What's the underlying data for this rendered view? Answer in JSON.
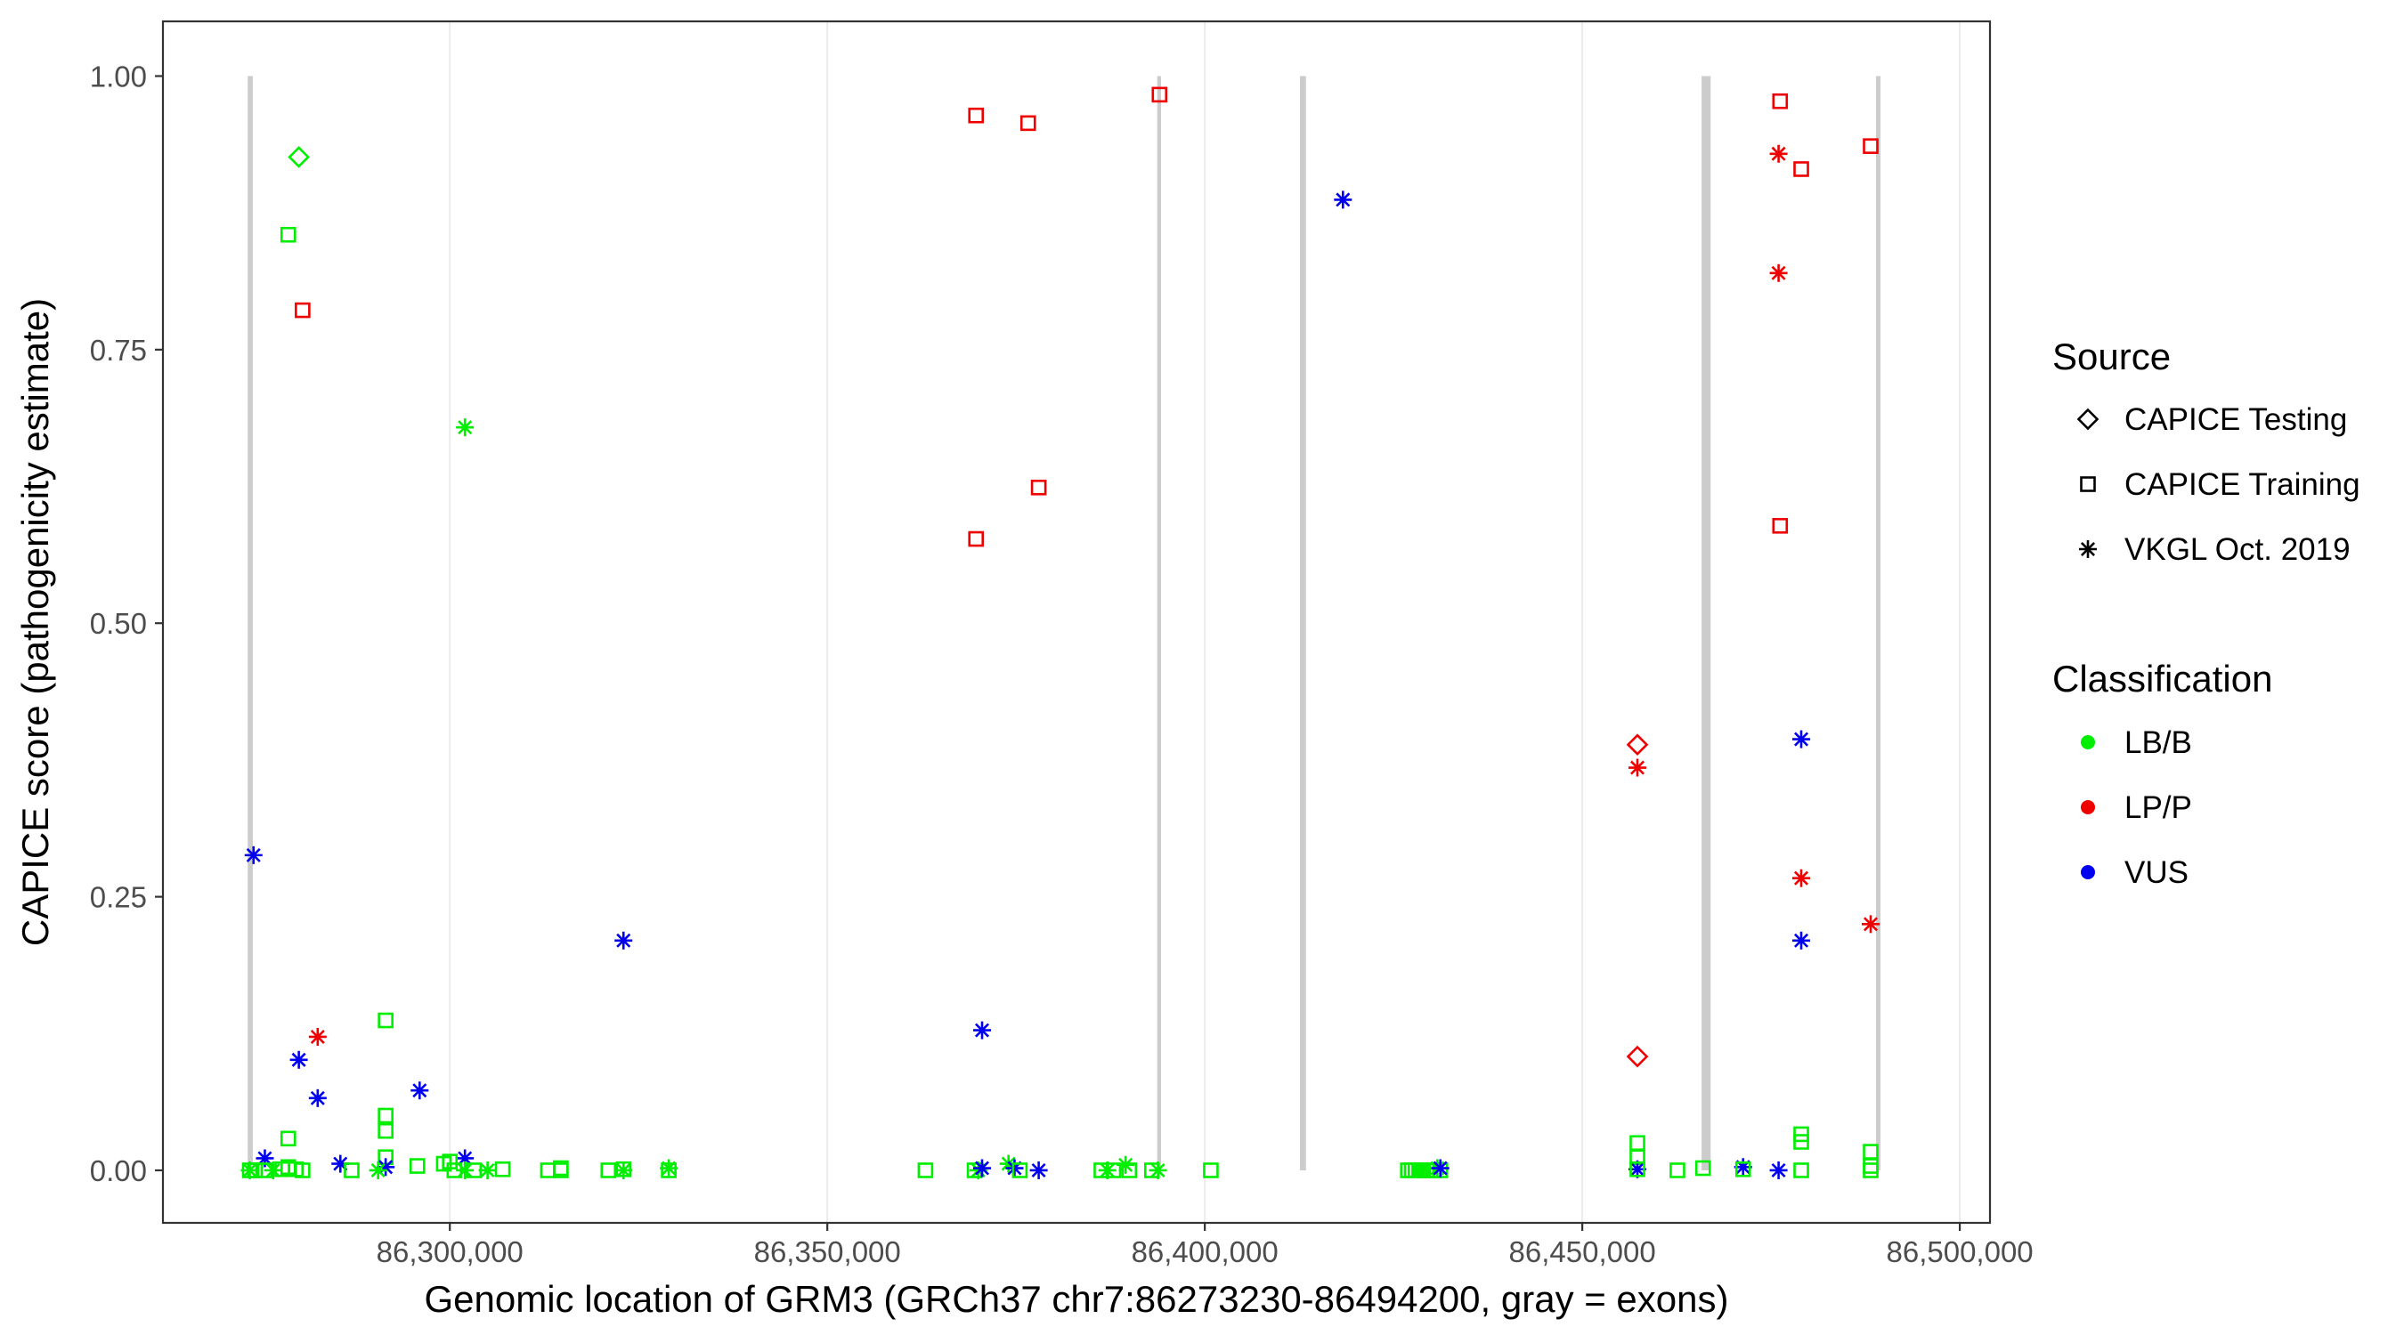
{
  "chart_data": {
    "type": "scatter",
    "xlabel": "Genomic location of GRM3 (GRCh37 chr7:86273230-86494200, gray = exons)",
    "ylabel": "CAPICE score (pathogenicity estimate)",
    "xlim": [
      86262000,
      86504000
    ],
    "ylim": [
      -0.048,
      1.05
    ],
    "x_ticks": [
      86300000,
      86350000,
      86400000,
      86450000,
      86500000
    ],
    "x_tick_labels": [
      "86,300,000",
      "86,350,000",
      "86,400,000",
      "86,450,000",
      "86,500,000"
    ],
    "y_ticks": [
      0,
      0.25,
      0.5,
      0.75,
      1.0
    ],
    "y_tick_labels": [
      "0.00",
      "0.25",
      "0.50",
      "0.75",
      "1.00"
    ],
    "grid": "major x gridlines only",
    "exons": [
      {
        "start": 86273230,
        "end": 86273900
      },
      {
        "start": 86393700,
        "end": 86394200
      },
      {
        "start": 86412600,
        "end": 86413400
      },
      {
        "start": 86465800,
        "end": 86467000
      },
      {
        "start": 86488900,
        "end": 86489500
      }
    ],
    "colors": {
      "LB/B": "#00ee00",
      "LP/P": "#ee0000",
      "VUS": "#0000ee"
    },
    "legend_position": "right",
    "legend_source_title": "Source",
    "legend_source_items": [
      {
        "label": "CAPICE Testing",
        "shape": "diamond"
      },
      {
        "label": "CAPICE Training",
        "shape": "square"
      },
      {
        "label": "VKGL Oct. 2019",
        "shape": "asterisk"
      }
    ],
    "legend_class_title": "Classification",
    "legend_class_items": [
      {
        "label": "LB/B"
      },
      {
        "label": "LP/P"
      },
      {
        "label": "VUS"
      }
    ],
    "points": [
      {
        "x": 86280000,
        "y": 0.926,
        "source": "CAPICE Testing",
        "class": "LB/B"
      },
      {
        "x": 86278600,
        "y": 0.855,
        "source": "CAPICE Training",
        "class": "LB/B"
      },
      {
        "x": 86280500,
        "y": 0.786,
        "source": "CAPICE Training",
        "class": "LP/P"
      },
      {
        "x": 86302000,
        "y": 0.679,
        "source": "VKGL Oct. 2019",
        "class": "LB/B"
      },
      {
        "x": 86274000,
        "y": 0.288,
        "source": "VKGL Oct. 2019",
        "class": "VUS"
      },
      {
        "x": 86323000,
        "y": 0.21,
        "source": "VKGL Oct. 2019",
        "class": "VUS"
      },
      {
        "x": 86291500,
        "y": 0.137,
        "source": "CAPICE Training",
        "class": "LB/B"
      },
      {
        "x": 86282500,
        "y": 0.122,
        "source": "VKGL Oct. 2019",
        "class": "LP/P"
      },
      {
        "x": 86280000,
        "y": 0.101,
        "source": "VKGL Oct. 2019",
        "class": "VUS"
      },
      {
        "x": 86296000,
        "y": 0.073,
        "source": "VKGL Oct. 2019",
        "class": "VUS"
      },
      {
        "x": 86282500,
        "y": 0.066,
        "source": "VKGL Oct. 2019",
        "class": "VUS"
      },
      {
        "x": 86291500,
        "y": 0.05,
        "source": "CAPICE Training",
        "class": "LB/B"
      },
      {
        "x": 86291500,
        "y": 0.036,
        "source": "CAPICE Training",
        "class": "LB/B"
      },
      {
        "x": 86278600,
        "y": 0.029,
        "source": "CAPICE Training",
        "class": "LB/B"
      },
      {
        "x": 86275500,
        "y": 0.011,
        "source": "VKGL Oct. 2019",
        "class": "VUS"
      },
      {
        "x": 86302000,
        "y": 0.011,
        "source": "VKGL Oct. 2019",
        "class": "VUS"
      },
      {
        "x": 86291500,
        "y": 0.012,
        "source": "CAPICE Training",
        "class": "LB/B"
      },
      {
        "x": 86285500,
        "y": 0.006,
        "source": "VKGL Oct. 2019",
        "class": "VUS"
      },
      {
        "x": 86291500,
        "y": 0.003,
        "source": "VKGL Oct. 2019",
        "class": "VUS"
      },
      {
        "x": 86300000,
        "y": 0.008,
        "source": "CAPICE Training",
        "class": "LB/B"
      },
      {
        "x": 86299200,
        "y": 0.006,
        "source": "CAPICE Training",
        "class": "LB/B"
      },
      {
        "x": 86295700,
        "y": 0.004,
        "source": "CAPICE Training",
        "class": "LB/B"
      },
      {
        "x": 86273500,
        "y": 0.0,
        "source": "CAPICE Training",
        "class": "LB/B"
      },
      {
        "x": 86274200,
        "y": 0.0,
        "source": "CAPICE Training",
        "class": "LB/B"
      },
      {
        "x": 86273500,
        "y": 0.0,
        "source": "VKGL Oct. 2019",
        "class": "LB/B"
      },
      {
        "x": 86275500,
        "y": 0.0,
        "source": "CAPICE Training",
        "class": "LB/B"
      },
      {
        "x": 86276600,
        "y": 0.0,
        "source": "VKGL Oct. 2019",
        "class": "LB/B"
      },
      {
        "x": 86277800,
        "y": 0.001,
        "source": "CAPICE Training",
        "class": "LB/B"
      },
      {
        "x": 86278600,
        "y": 0.003,
        "source": "CAPICE Training",
        "class": "LB/B"
      },
      {
        "x": 86279600,
        "y": 0.001,
        "source": "CAPICE Training",
        "class": "LB/B"
      },
      {
        "x": 86280500,
        "y": 0.0,
        "source": "CAPICE Training",
        "class": "LB/B"
      },
      {
        "x": 86287000,
        "y": 0.0,
        "source": "CAPICE Training",
        "class": "LB/B"
      },
      {
        "x": 86290500,
        "y": 0.0,
        "source": "VKGL Oct. 2019",
        "class": "LB/B"
      },
      {
        "x": 86300600,
        "y": 0.0,
        "source": "CAPICE Training",
        "class": "LB/B"
      },
      {
        "x": 86302000,
        "y": 0.0,
        "source": "VKGL Oct. 2019",
        "class": "LB/B"
      },
      {
        "x": 86303200,
        "y": 0.0,
        "source": "CAPICE Training",
        "class": "LB/B"
      },
      {
        "x": 86305000,
        "y": 0.0,
        "source": "VKGL Oct. 2019",
        "class": "LB/B"
      },
      {
        "x": 86307000,
        "y": 0.001,
        "source": "CAPICE Training",
        "class": "LB/B"
      },
      {
        "x": 86313000,
        "y": 0.0,
        "source": "CAPICE Training",
        "class": "LB/B"
      },
      {
        "x": 86314700,
        "y": 0.002,
        "source": "CAPICE Training",
        "class": "LB/B"
      },
      {
        "x": 86314700,
        "y": 0.0,
        "source": "CAPICE Training",
        "class": "LB/B"
      },
      {
        "x": 86321000,
        "y": 0.0,
        "source": "CAPICE Training",
        "class": "LB/B"
      },
      {
        "x": 86323000,
        "y": 0.0,
        "source": "VKGL Oct. 2019",
        "class": "LB/B"
      },
      {
        "x": 86323000,
        "y": 0.001,
        "source": "CAPICE Training",
        "class": "LB/B"
      },
      {
        "x": 86329000,
        "y": 0.002,
        "source": "VKGL Oct. 2019",
        "class": "LB/B"
      },
      {
        "x": 86329000,
        "y": 0.0,
        "source": "CAPICE Training",
        "class": "LB/B"
      },
      {
        "x": 86369700,
        "y": 0.964,
        "source": "CAPICE Training",
        "class": "LP/P"
      },
      {
        "x": 86376600,
        "y": 0.957,
        "source": "CAPICE Training",
        "class": "LP/P"
      },
      {
        "x": 86394000,
        "y": 0.983,
        "source": "CAPICE Training",
        "class": "LP/P"
      },
      {
        "x": 86378000,
        "y": 0.624,
        "source": "CAPICE Training",
        "class": "LP/P"
      },
      {
        "x": 86369700,
        "y": 0.577,
        "source": "CAPICE Training",
        "class": "LP/P"
      },
      {
        "x": 86370500,
        "y": 0.128,
        "source": "VKGL Oct. 2019",
        "class": "VUS"
      },
      {
        "x": 86363000,
        "y": 0.0,
        "source": "CAPICE Training",
        "class": "LB/B"
      },
      {
        "x": 86369500,
        "y": 0.0,
        "source": "CAPICE Training",
        "class": "LB/B"
      },
      {
        "x": 86370000,
        "y": 0.0,
        "source": "VKGL Oct. 2019",
        "class": "LB/B"
      },
      {
        "x": 86370500,
        "y": 0.002,
        "source": "VKGL Oct. 2019",
        "class": "VUS"
      },
      {
        "x": 86374000,
        "y": 0.006,
        "source": "VKGL Oct. 2019",
        "class": "LB/B"
      },
      {
        "x": 86374800,
        "y": 0.002,
        "source": "VKGL Oct. 2019",
        "class": "VUS"
      },
      {
        "x": 86375500,
        "y": 0.0,
        "source": "CAPICE Training",
        "class": "LB/B"
      },
      {
        "x": 86378000,
        "y": 0.0,
        "source": "VKGL Oct. 2019",
        "class": "VUS"
      },
      {
        "x": 86386300,
        "y": 0.0,
        "source": "CAPICE Training",
        "class": "LB/B"
      },
      {
        "x": 86387100,
        "y": 0.0,
        "source": "VKGL Oct. 2019",
        "class": "LB/B"
      },
      {
        "x": 86387900,
        "y": 0.0,
        "source": "CAPICE Training",
        "class": "LB/B"
      },
      {
        "x": 86389500,
        "y": 0.005,
        "source": "VKGL Oct. 2019",
        "class": "LB/B"
      },
      {
        "x": 86390000,
        "y": 0.0,
        "source": "CAPICE Training",
        "class": "LB/B"
      },
      {
        "x": 86393000,
        "y": 0.0,
        "source": "CAPICE Training",
        "class": "LB/B"
      },
      {
        "x": 86393800,
        "y": 0.0,
        "source": "VKGL Oct. 2019",
        "class": "LB/B"
      },
      {
        "x": 86400800,
        "y": 0.0,
        "source": "CAPICE Training",
        "class": "LB/B"
      },
      {
        "x": 86418300,
        "y": 0.887,
        "source": "VKGL Oct. 2019",
        "class": "VUS"
      },
      {
        "x": 86426900,
        "y": 0.0,
        "source": "CAPICE Training",
        "class": "LB/B"
      },
      {
        "x": 86427400,
        "y": 0.0,
        "source": "CAPICE Training",
        "class": "LB/B"
      },
      {
        "x": 86427900,
        "y": 0.0,
        "source": "CAPICE Training",
        "class": "LB/B"
      },
      {
        "x": 86428400,
        "y": 0.0,
        "source": "CAPICE Training",
        "class": "LB/B"
      },
      {
        "x": 86428900,
        "y": 0.0,
        "source": "CAPICE Training",
        "class": "LB/B"
      },
      {
        "x": 86429400,
        "y": 0.0,
        "source": "CAPICE Training",
        "class": "LB/B"
      },
      {
        "x": 86429900,
        "y": 0.0,
        "source": "CAPICE Training",
        "class": "LB/B"
      },
      {
        "x": 86430400,
        "y": 0.0,
        "source": "CAPICE Training",
        "class": "LB/B"
      },
      {
        "x": 86430800,
        "y": 0.002,
        "source": "VKGL Oct. 2019",
        "class": "LB/B"
      },
      {
        "x": 86431200,
        "y": 0.0,
        "source": "CAPICE Training",
        "class": "LB/B"
      },
      {
        "x": 86431200,
        "y": 0.002,
        "source": "VKGL Oct. 2019",
        "class": "VUS"
      },
      {
        "x": 86457300,
        "y": 0.389,
        "source": "CAPICE Testing",
        "class": "LP/P"
      },
      {
        "x": 86457300,
        "y": 0.368,
        "source": "VKGL Oct. 2019",
        "class": "LP/P"
      },
      {
        "x": 86457300,
        "y": 0.104,
        "source": "CAPICE Testing",
        "class": "LP/P"
      },
      {
        "x": 86457300,
        "y": 0.025,
        "source": "CAPICE Training",
        "class": "LB/B"
      },
      {
        "x": 86457300,
        "y": 0.012,
        "source": "CAPICE Training",
        "class": "LB/B"
      },
      {
        "x": 86457300,
        "y": 0.001,
        "source": "VKGL Oct. 2019",
        "class": "VUS"
      },
      {
        "x": 86457300,
        "y": 0.001,
        "source": "CAPICE Training",
        "class": "LB/B"
      },
      {
        "x": 86462600,
        "y": 0.0,
        "source": "CAPICE Training",
        "class": "LB/B"
      },
      {
        "x": 86466000,
        "y": 0.002,
        "source": "CAPICE Training",
        "class": "LB/B"
      },
      {
        "x": 86471300,
        "y": 0.003,
        "source": "VKGL Oct. 2019",
        "class": "VUS"
      },
      {
        "x": 86471300,
        "y": 0.001,
        "source": "CAPICE Training",
        "class": "LB/B"
      },
      {
        "x": 86476200,
        "y": 0.977,
        "source": "CAPICE Training",
        "class": "LP/P"
      },
      {
        "x": 86476000,
        "y": 0.929,
        "source": "VKGL Oct. 2019",
        "class": "LP/P"
      },
      {
        "x": 86479000,
        "y": 0.915,
        "source": "CAPICE Training",
        "class": "LP/P"
      },
      {
        "x": 86476000,
        "y": 0.82,
        "source": "VKGL Oct. 2019",
        "class": "LP/P"
      },
      {
        "x": 86476200,
        "y": 0.589,
        "source": "CAPICE Training",
        "class": "LP/P"
      },
      {
        "x": 86479000,
        "y": 0.394,
        "source": "VKGL Oct. 2019",
        "class": "VUS"
      },
      {
        "x": 86479000,
        "y": 0.267,
        "source": "VKGL Oct. 2019",
        "class": "LP/P"
      },
      {
        "x": 86479000,
        "y": 0.21,
        "source": "VKGL Oct. 2019",
        "class": "VUS"
      },
      {
        "x": 86479000,
        "y": 0.033,
        "source": "CAPICE Training",
        "class": "LB/B"
      },
      {
        "x": 86479000,
        "y": 0.026,
        "source": "CAPICE Training",
        "class": "LB/B"
      },
      {
        "x": 86476000,
        "y": 0.0,
        "source": "VKGL Oct. 2019",
        "class": "VUS"
      },
      {
        "x": 86479000,
        "y": 0.0,
        "source": "CAPICE Training",
        "class": "LB/B"
      },
      {
        "x": 86488200,
        "y": 0.936,
        "source": "CAPICE Training",
        "class": "LP/P"
      },
      {
        "x": 86488200,
        "y": 0.225,
        "source": "VKGL Oct. 2019",
        "class": "LP/P"
      },
      {
        "x": 86488200,
        "y": 0.017,
        "source": "CAPICE Training",
        "class": "LB/B"
      },
      {
        "x": 86488200,
        "y": 0.004,
        "source": "CAPICE Training",
        "class": "LB/B"
      },
      {
        "x": 86488200,
        "y": 0.0,
        "source": "CAPICE Training",
        "class": "LB/B"
      }
    ]
  }
}
